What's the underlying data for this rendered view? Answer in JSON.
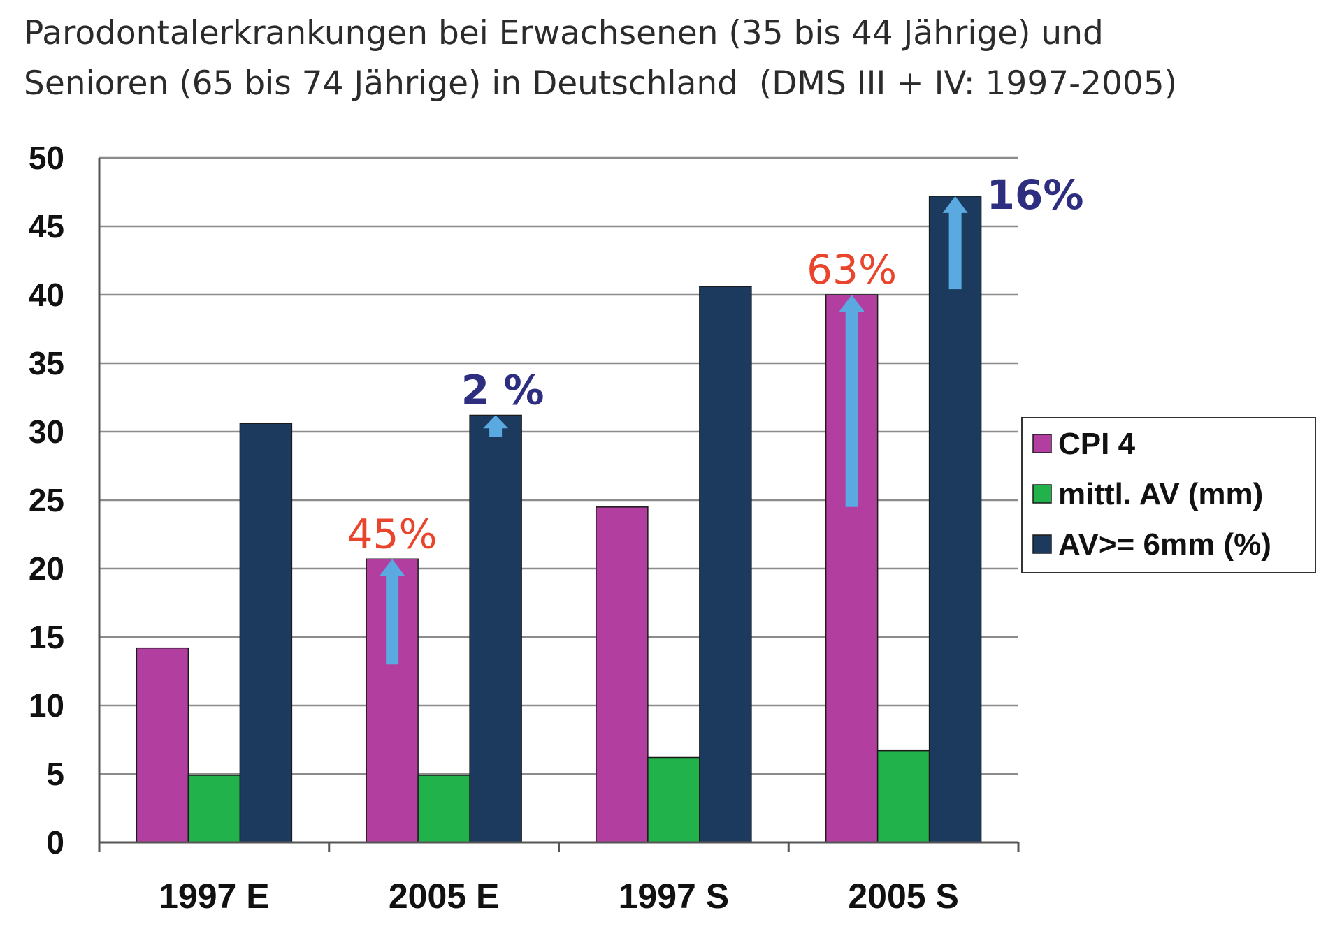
{
  "chart_data": {
    "type": "bar",
    "title_lines": [
      "Parodontalerkrankungen bei Erwachsenen (35 bis 44 Jährige) und",
      "Senioren (65 bis 74 Jährige) in Deutschland  (DMS III + IV: 1997-2005)"
    ],
    "categories": [
      "1997 E",
      "2005 E",
      "1997 S",
      "2005 S"
    ],
    "series": [
      {
        "name": "CPI 4",
        "color": "#b23fa0",
        "values": [
          14.2,
          20.7,
          24.5,
          40.0
        ]
      },
      {
        "name": "mittl. AV (mm)",
        "color": "#21b24b",
        "values": [
          4.9,
          4.9,
          6.2,
          6.7
        ]
      },
      {
        "name": "AV>= 6mm (%)",
        "color": "#1b3a5e",
        "values": [
          30.6,
          31.2,
          40.6,
          47.2
        ]
      }
    ],
    "ylim": [
      0,
      50
    ],
    "yticks": [
      0,
      5,
      10,
      15,
      20,
      25,
      30,
      35,
      40,
      45,
      50
    ],
    "grid": true,
    "legend_position": "right",
    "annotations": [
      {
        "text": "45%",
        "category": 1,
        "series": 0,
        "color": "#e8452c",
        "arrow_from": 13,
        "arrow_to": 20.7
      },
      {
        "text": "2 %",
        "category": 1,
        "series": 2,
        "color": "#2e2e80",
        "arrow_from": 29.6,
        "arrow_to": 31.2
      },
      {
        "text": "63%",
        "category": 3,
        "series": 0,
        "color": "#e8452c",
        "arrow_from": 24.5,
        "arrow_to": 40.0
      },
      {
        "text": "16%",
        "category": 3,
        "series": 2,
        "color": "#2e2e80",
        "arrow_from": 40.4,
        "arrow_to": 47.2
      }
    ],
    "arrow_color": "#5aa9e0"
  }
}
